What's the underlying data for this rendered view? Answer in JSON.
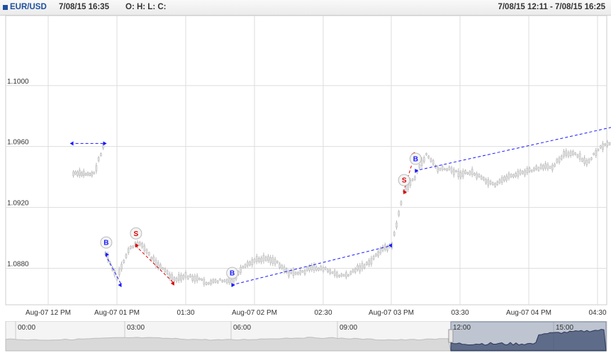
{
  "header": {
    "symbol": "EUR/USD",
    "datetime": "7/08/15 16:35",
    "ohlc": "O: H: L: C:",
    "range": "7/08/15 12:11 - 7/08/15 16:25"
  },
  "colors": {
    "buy": "#1a1aff",
    "sell": "#dd0000",
    "grid": "#dddddd",
    "candle": "#b8b8b8"
  },
  "chart_data": {
    "type": "line",
    "y_ticks": [
      "1.1000",
      "1.0960",
      "1.0920",
      "1.0880"
    ],
    "y_tick_values": [
      1.1,
      1.096,
      1.092,
      1.088
    ],
    "ylim": [
      1.0856,
      1.1046
    ],
    "x_ticks": [
      "Aug-07 12 PM",
      "Aug-07 01 PM",
      "01:30",
      "Aug-07 02 PM",
      "02:30",
      "Aug-07 03 PM",
      "03:30",
      "Aug-07 04 PM",
      "04:30"
    ],
    "series": [
      {
        "x": [
          "12:11",
          "12:20",
          "12:24",
          "12:25",
          "12:30",
          "12:35",
          "12:40",
          "12:45",
          "12:50",
          "12:55",
          "13:00",
          "13:05",
          "13:10",
          "13:15",
          "13:20",
          "13:25",
          "13:30",
          "13:35",
          "13:40",
          "13:45",
          "13:50",
          "13:55",
          "14:00",
          "14:05",
          "14:10",
          "14:15",
          "14:20",
          "14:25",
          "14:30",
          "14:35",
          "14:40",
          "14:45",
          "14:50",
          "14:55",
          "15:00",
          "15:05",
          "15:10",
          "15:15",
          "15:20",
          "15:25",
          "15:30",
          "15:35",
          "15:40",
          "15:45",
          "15:50",
          "15:55",
          "16:00",
          "16:05",
          "16:10",
          "16:15",
          "16:20",
          "16:25"
        ],
        "values": [
          1.0942,
          1.0942,
          1.096,
          1.089,
          1.0873,
          1.0892,
          1.0897,
          1.0887,
          1.088,
          1.0872,
          1.0875,
          1.0873,
          1.087,
          1.0872,
          1.0871,
          1.088,
          1.0885,
          1.0887,
          1.0884,
          1.0877,
          1.0877,
          1.088,
          1.088,
          1.0876,
          1.0875,
          1.088,
          1.0883,
          1.0892,
          1.0895,
          1.093,
          1.094,
          1.0955,
          1.0945,
          1.0945,
          1.0942,
          1.0943,
          1.0938,
          1.0934,
          1.094,
          1.0942,
          1.0944,
          1.0946,
          1.0947,
          1.0955,
          1.0955,
          1.0949,
          1.0958,
          1.0962,
          1.097,
          1.0972,
          1.097,
          1.0968
        ]
      }
    ],
    "trades": [
      {
        "label": "B",
        "side": "buy",
        "t0": "12:24",
        "y0": 1.0962,
        "t1": "12:11",
        "y1": 1.0962
      },
      {
        "label": "B",
        "side": "buy",
        "t0": "12:25",
        "y0": 1.0889,
        "t1": "12:32",
        "y1": 1.0869
      },
      {
        "label": "S",
        "side": "sell",
        "t0": "12:38",
        "y0": 1.0895,
        "t1": "12:55",
        "y1": 1.087
      },
      {
        "label": "B",
        "side": "buy",
        "t0": "13:20",
        "y0": 1.0869,
        "t1": "14:30",
        "y1": 1.0895
      },
      {
        "label": "S",
        "side": "sell",
        "t0": "14:35",
        "y0": 1.093,
        "t1": "14:40",
        "y1": 1.0955
      },
      {
        "label": "B",
        "side": "buy",
        "t0": "14:40",
        "y0": 1.0944,
        "t1": "16:10",
        "y1": 1.0974
      }
    ]
  },
  "navigator": {
    "labels": [
      "00:00",
      "03:00",
      "06:00",
      "09:00",
      "12:00",
      "15:00"
    ]
  }
}
